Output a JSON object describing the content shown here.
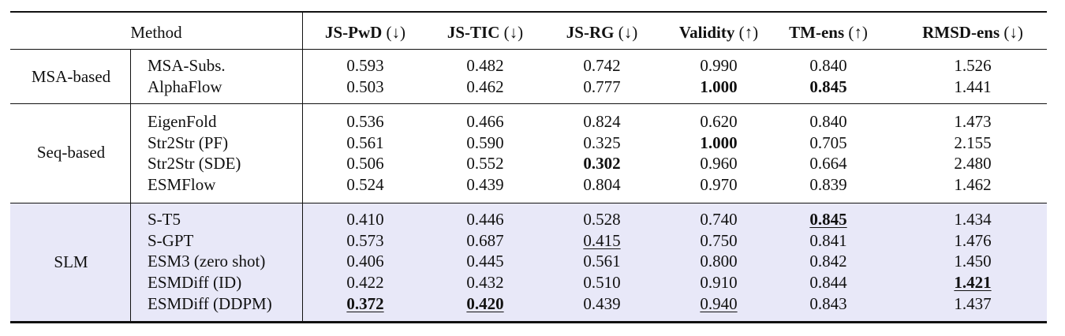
{
  "table": {
    "columns": [
      {
        "name": "JS-PwD",
        "arrow": "(↓)"
      },
      {
        "name": "JS-TIC",
        "arrow": "(↓)"
      },
      {
        "name": "JS-RG",
        "arrow": "(↓)"
      },
      {
        "name": "Validity",
        "arrow": "(↑)"
      },
      {
        "name": "TM-ens",
        "arrow": "(↑)"
      },
      {
        "name": "RMSD-ens",
        "arrow": "(↓)"
      }
    ],
    "method_header": "Method",
    "groups": [
      {
        "name": "MSA-based",
        "rows": [
          {
            "method": "MSA-Subs.",
            "values": [
              {
                "v": "0.593"
              },
              {
                "v": "0.482"
              },
              {
                "v": "0.742"
              },
              {
                "v": "0.990"
              },
              {
                "v": "0.840"
              },
              {
                "v": "1.526"
              }
            ]
          },
          {
            "method": "AlphaFlow",
            "values": [
              {
                "v": "0.503"
              },
              {
                "v": "0.462"
              },
              {
                "v": "0.777"
              },
              {
                "v": "1.000",
                "bold": true
              },
              {
                "v": "0.845",
                "bold": true
              },
              {
                "v": "1.441"
              }
            ]
          }
        ]
      },
      {
        "name": "Seq-based",
        "rows": [
          {
            "method": "EigenFold",
            "values": [
              {
                "v": "0.536"
              },
              {
                "v": "0.466"
              },
              {
                "v": "0.824"
              },
              {
                "v": "0.620"
              },
              {
                "v": "0.840"
              },
              {
                "v": "1.473"
              }
            ]
          },
          {
            "method": "Str2Str (PF)",
            "values": [
              {
                "v": "0.561"
              },
              {
                "v": "0.590"
              },
              {
                "v": "0.325"
              },
              {
                "v": "1.000",
                "bold": true
              },
              {
                "v": "0.705"
              },
              {
                "v": "2.155"
              }
            ]
          },
          {
            "method": "Str2Str (SDE)",
            "values": [
              {
                "v": "0.506"
              },
              {
                "v": "0.552"
              },
              {
                "v": "0.302",
                "bold": true
              },
              {
                "v": "0.960"
              },
              {
                "v": "0.664"
              },
              {
                "v": "2.480"
              }
            ]
          },
          {
            "method": "ESMFlow",
            "values": [
              {
                "v": "0.524"
              },
              {
                "v": "0.439"
              },
              {
                "v": "0.804"
              },
              {
                "v": "0.970"
              },
              {
                "v": "0.839"
              },
              {
                "v": "1.462"
              }
            ]
          }
        ]
      },
      {
        "name": "SLM",
        "shaded": true,
        "rows": [
          {
            "method": "S-T5",
            "values": [
              {
                "v": "0.410"
              },
              {
                "v": "0.446"
              },
              {
                "v": "0.528"
              },
              {
                "v": "0.740"
              },
              {
                "v": "0.845",
                "bold": true,
                "underline": true
              },
              {
                "v": "1.434"
              }
            ]
          },
          {
            "method": "S-GPT",
            "values": [
              {
                "v": "0.573"
              },
              {
                "v": "0.687"
              },
              {
                "v": "0.415",
                "underline": true
              },
              {
                "v": "0.750"
              },
              {
                "v": "0.841"
              },
              {
                "v": "1.476"
              }
            ]
          },
          {
            "method": "ESM3 (zero shot)",
            "values": [
              {
                "v": "0.406"
              },
              {
                "v": "0.445"
              },
              {
                "v": "0.561"
              },
              {
                "v": "0.800"
              },
              {
                "v": "0.842"
              },
              {
                "v": "1.450"
              }
            ]
          },
          {
            "method": "ESMDiff (ID)",
            "values": [
              {
                "v": "0.422"
              },
              {
                "v": "0.432"
              },
              {
                "v": "0.510"
              },
              {
                "v": "0.910"
              },
              {
                "v": "0.844"
              },
              {
                "v": "1.421",
                "bold": true,
                "underline": true
              }
            ]
          },
          {
            "method": "ESMDiff (DDPM)",
            "values": [
              {
                "v": "0.372",
                "bold": true,
                "underline": true
              },
              {
                "v": "0.420",
                "bold": true,
                "underline": true
              },
              {
                "v": "0.439"
              },
              {
                "v": "0.940",
                "underline": true
              },
              {
                "v": "0.843"
              },
              {
                "v": "1.437"
              }
            ]
          }
        ]
      }
    ]
  }
}
